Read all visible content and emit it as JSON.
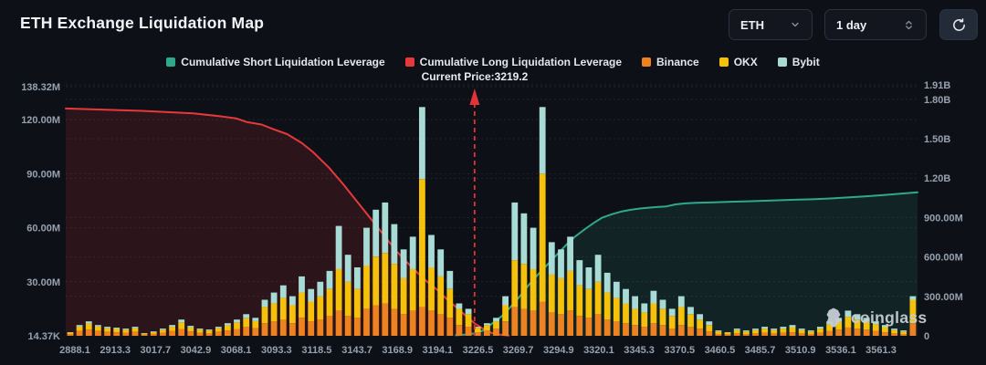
{
  "header": {
    "title": "ETH Exchange Liquidation Map",
    "symbol_select": {
      "value": "ETH"
    },
    "interval_select": {
      "value": "1 day"
    }
  },
  "watermark": {
    "text": "coinglass"
  },
  "colors": {
    "background": "#0d1016",
    "binance": "#EE8221",
    "okx": "#F5C10A",
    "bybit": "#A9DBD6",
    "long_line": "#E5393C",
    "short_line": "#2FA98C",
    "current_price_line": "#E03438"
  },
  "chart_data": {
    "type": "combo-stacked-bar-line",
    "title": "ETH Exchange Liquidation Map",
    "current_price": {
      "label": "Current Price:3219.2",
      "value": 3219.2,
      "x_frac": 0.48
    },
    "legend": [
      {
        "label": "Cumulative Short Liquidation Leverage",
        "color": "#2FA98C"
      },
      {
        "label": "Cumulative Long Liquidation Leverage",
        "color": "#E5393C"
      },
      {
        "label": "Binance",
        "color": "#EE8221"
      },
      {
        "label": "OKX",
        "color": "#F5C10A"
      },
      {
        "label": "Bybit",
        "color": "#A9DBD6"
      }
    ],
    "x_axis": {
      "tick_labels": [
        "2888.1",
        "2913.3",
        "3017.7",
        "3042.9",
        "3068.1",
        "3093.3",
        "3118.5",
        "3143.7",
        "3168.9",
        "3194.1",
        "3226.5",
        "3269.7",
        "3294.9",
        "3320.1",
        "3345.3",
        "3370.5",
        "3460.5",
        "3485.7",
        "3510.9",
        "3536.1",
        "3561.3"
      ]
    },
    "left_axis": {
      "tick_labels": [
        "14.37K",
        "30.00M",
        "60.00M",
        "90.00M",
        "120.00M",
        "138.32M"
      ],
      "tick_values_m": [
        0,
        30,
        60,
        90,
        120,
        138.32
      ],
      "max_m": 138.32
    },
    "right_axis": {
      "tick_labels": [
        "0",
        "300.00M",
        "600.00M",
        "900.00M",
        "1.20B",
        "1.50B",
        "1.80B",
        "1.91B"
      ],
      "tick_values_m": [
        0,
        300,
        600,
        900,
        1200,
        1500,
        1800,
        1910
      ],
      "max_m": 1910
    },
    "bar_series": [
      "Binance",
      "OKX",
      "Bybit"
    ],
    "bar_colors": [
      "#EE8221",
      "#F5C10A",
      "#A9DBD6"
    ],
    "bars_unit": "millions_usd",
    "bars": [
      [
        1,
        0.8,
        0.2
      ],
      [
        2.8,
        2.4,
        0.8
      ],
      [
        3.5,
        3.3,
        1.2
      ],
      [
        2.8,
        2.4,
        0.8
      ],
      [
        2.2,
        2,
        0.8
      ],
      [
        2,
        1.8,
        0.7
      ],
      [
        1.8,
        1.6,
        0.6
      ],
      [
        2.2,
        2,
        0.8
      ],
      [
        0.7,
        0.6,
        0.2
      ],
      [
        1.1,
        1,
        0.4
      ],
      [
        1.8,
        1.6,
        0.6
      ],
      [
        2.6,
        2.4,
        1
      ],
      [
        3.8,
        3.6,
        1.6
      ],
      [
        2.4,
        2.2,
        0.9
      ],
      [
        1.8,
        1.6,
        0.6
      ],
      [
        1.5,
        1.4,
        0.6
      ],
      [
        2.2,
        2,
        0.8
      ],
      [
        3,
        2.8,
        1.2
      ],
      [
        3.8,
        3.6,
        1.6
      ],
      [
        5,
        4.8,
        2.2
      ],
      [
        4.2,
        4,
        1.8
      ],
      [
        7,
        9,
        4
      ],
      [
        8,
        10,
        6
      ],
      [
        9,
        12,
        7
      ],
      [
        7,
        10,
        5
      ],
      [
        10,
        14,
        9
      ],
      [
        8,
        11,
        7
      ],
      [
        9,
        13,
        8
      ],
      [
        11,
        15,
        10
      ],
      [
        14,
        23,
        24
      ],
      [
        11,
        19,
        15
      ],
      [
        10,
        16,
        12
      ],
      [
        15,
        24,
        21
      ],
      [
        17,
        27,
        26
      ],
      [
        18,
        28,
        28
      ],
      [
        15,
        25,
        22
      ],
      [
        12,
        20,
        16
      ],
      [
        14,
        23,
        18
      ],
      [
        16,
        71,
        40
      ],
      [
        14,
        24,
        18
      ],
      [
        12,
        21,
        15
      ],
      [
        10,
        16,
        10
      ],
      [
        6,
        9,
        3
      ],
      [
        5,
        7,
        3
      ],
      [
        2,
        2.5,
        0.5
      ],
      [
        3,
        3,
        1
      ],
      [
        4,
        4,
        2
      ],
      [
        8,
        9,
        5
      ],
      [
        16,
        26,
        32
      ],
      [
        15,
        25,
        28
      ],
      [
        14,
        23,
        23
      ],
      [
        19,
        71,
        37
      ],
      [
        13,
        21,
        18
      ],
      [
        12,
        20,
        16
      ],
      [
        14,
        22,
        19
      ],
      [
        11,
        17,
        14
      ],
      [
        10,
        16,
        12
      ],
      [
        12,
        18,
        15
      ],
      [
        9,
        15,
        11
      ],
      [
        8,
        13,
        9
      ],
      [
        7,
        11,
        8
      ],
      [
        6,
        9,
        7
      ],
      [
        5,
        8,
        5
      ],
      [
        7,
        11,
        7
      ],
      [
        6,
        9,
        5
      ],
      [
        4,
        7,
        4
      ],
      [
        6,
        10,
        6
      ],
      [
        5,
        7,
        4
      ],
      [
        4,
        5,
        3
      ],
      [
        2.5,
        3.5,
        2
      ],
      [
        1,
        1.5,
        0.5
      ],
      [
        0.8,
        1,
        0.2
      ],
      [
        1.4,
        1.8,
        0.8
      ],
      [
        1,
        1.4,
        0.6
      ],
      [
        1.4,
        1.8,
        0.8
      ],
      [
        1.8,
        2.2,
        1
      ],
      [
        1.4,
        1.8,
        0.8
      ],
      [
        1.8,
        2.2,
        1
      ],
      [
        2,
        2.8,
        1.2
      ],
      [
        1.4,
        1.8,
        0.8
      ],
      [
        1,
        1.4,
        0.6
      ],
      [
        1.8,
        2.2,
        1
      ],
      [
        2.8,
        3.6,
        1.6
      ],
      [
        3.4,
        4.4,
        2.2
      ],
      [
        4.6,
        6,
        3.4
      ],
      [
        4,
        5,
        3
      ],
      [
        3.4,
        4.4,
        2.2
      ],
      [
        2.8,
        3.6,
        1.6
      ],
      [
        2,
        2.8,
        1.2
      ],
      [
        1.4,
        1.8,
        0.8
      ],
      [
        1,
        1.4,
        0.6
      ],
      [
        7,
        13,
        2
      ]
    ],
    "lines": [
      {
        "name": "Cumulative Long Liquidation Leverage",
        "axis": "right",
        "color": "#E5393C",
        "fill": "rgba(229,57,60,0.14)",
        "points": [
          [
            0,
            1730
          ],
          [
            0.03,
            1724
          ],
          [
            0.06,
            1718
          ],
          [
            0.09,
            1712
          ],
          [
            0.12,
            1702
          ],
          [
            0.15,
            1693
          ],
          [
            0.18,
            1672
          ],
          [
            0.2,
            1655
          ],
          [
            0.212,
            1628
          ],
          [
            0.23,
            1608
          ],
          [
            0.244,
            1572
          ],
          [
            0.26,
            1535
          ],
          [
            0.277,
            1468
          ],
          [
            0.29,
            1400
          ],
          [
            0.309,
            1280
          ],
          [
            0.325,
            1160
          ],
          [
            0.341,
            1030
          ],
          [
            0.357,
            900
          ],
          [
            0.373,
            770
          ],
          [
            0.389,
            640
          ],
          [
            0.405,
            530
          ],
          [
            0.421,
            430
          ],
          [
            0.437,
            345
          ],
          [
            0.448,
            275
          ],
          [
            0.459,
            215
          ],
          [
            0.47,
            150
          ],
          [
            0.48,
            95
          ],
          [
            0.491,
            50
          ],
          [
            0.5,
            22
          ],
          [
            0.51,
            8
          ],
          [
            0.52,
            2
          ]
        ]
      },
      {
        "name": "Cumulative Short Liquidation Leverage",
        "axis": "right",
        "color": "#2FA98C",
        "fill": "rgba(47,169,140,0.13)",
        "points": [
          [
            0.458,
            4
          ],
          [
            0.47,
            10
          ],
          [
            0.48,
            18
          ],
          [
            0.49,
            40
          ],
          [
            0.501,
            95
          ],
          [
            0.512,
            150
          ],
          [
            0.523,
            225
          ],
          [
            0.533,
            300
          ],
          [
            0.544,
            390
          ],
          [
            0.555,
            470
          ],
          [
            0.566,
            545
          ],
          [
            0.577,
            620
          ],
          [
            0.588,
            695
          ],
          [
            0.598,
            755
          ],
          [
            0.609,
            810
          ],
          [
            0.62,
            860
          ],
          [
            0.63,
            900
          ],
          [
            0.641,
            925
          ],
          [
            0.652,
            945
          ],
          [
            0.662,
            958
          ],
          [
            0.673,
            968
          ],
          [
            0.684,
            975
          ],
          [
            0.694,
            980
          ],
          [
            0.705,
            985
          ],
          [
            0.716,
            1000
          ],
          [
            0.727,
            1008
          ],
          [
            0.74,
            1012
          ],
          [
            0.76,
            1016
          ],
          [
            0.78,
            1020
          ],
          [
            0.8,
            1024
          ],
          [
            0.82,
            1028
          ],
          [
            0.84,
            1032
          ],
          [
            0.86,
            1036
          ],
          [
            0.88,
            1040
          ],
          [
            0.9,
            1046
          ],
          [
            0.92,
            1054
          ],
          [
            0.94,
            1062
          ],
          [
            0.96,
            1072
          ],
          [
            0.98,
            1082
          ],
          [
            1,
            1092
          ]
        ]
      }
    ]
  }
}
